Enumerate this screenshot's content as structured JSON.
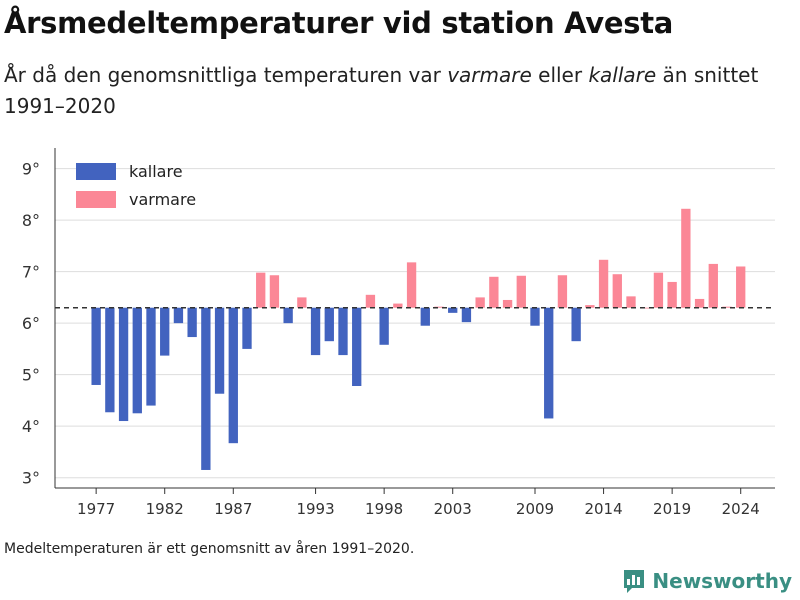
{
  "title": "Årsmedeltemperaturer vid station Avesta",
  "subtitle": {
    "part1": "År då den genomsnittliga temperaturen var ",
    "warm_word": "varmare",
    "part2": " eller ",
    "cold_word": "kallare",
    "part3": " än snittet 1991–2020"
  },
  "footnote": "Medeltemperaturen är ett genomsnitt av åren 1991–2020.",
  "brand": {
    "name": "Newsworthy",
    "icon": "newsworthy-logo-icon",
    "color": "#3a8f83"
  },
  "colors": {
    "kallare": "#4263bf",
    "varmare": "#fb8796",
    "reference_line": "#333333",
    "grid": "#dddddd"
  },
  "chart_data": {
    "type": "bar",
    "baseline": 6.3,
    "ylim": [
      2.8,
      9.4
    ],
    "yticks": [
      3,
      4,
      5,
      6,
      7,
      8,
      9
    ],
    "ytick_labels": [
      "3°",
      "4°",
      "5°",
      "6°",
      "7°",
      "8°",
      "9°"
    ],
    "xticks": [
      1977,
      1982,
      1987,
      1993,
      1998,
      2003,
      2009,
      2014,
      2019,
      2024
    ],
    "xtick_labels": [
      "1977",
      "1982",
      "1987",
      "1993",
      "1998",
      "2003",
      "2009",
      "2014",
      "2019",
      "2024"
    ],
    "xlim": [
      1974,
      2026.5
    ],
    "legend": [
      {
        "key": "kallare",
        "label": "kallare"
      },
      {
        "key": "varmare",
        "label": "varmare"
      }
    ],
    "legend_position": "top-left",
    "grid": true,
    "x": [
      1977,
      1978,
      1979,
      1980,
      1981,
      1982,
      1983,
      1984,
      1985,
      1986,
      1987,
      1988,
      1989,
      1990,
      1991,
      1992,
      1993,
      1994,
      1995,
      1996,
      1997,
      1998,
      1999,
      2000,
      2001,
      2002,
      2003,
      2004,
      2005,
      2006,
      2007,
      2008,
      2009,
      2010,
      2011,
      2012,
      2013,
      2014,
      2015,
      2016,
      2017,
      2018,
      2019,
      2020,
      2021,
      2022,
      2023,
      2024
    ],
    "values": [
      4.8,
      4.27,
      4.1,
      4.25,
      4.4,
      5.37,
      6.0,
      5.73,
      3.15,
      4.63,
      3.67,
      5.5,
      6.98,
      6.93,
      6.0,
      6.5,
      5.38,
      5.65,
      5.38,
      4.78,
      6.55,
      5.58,
      6.38,
      7.18,
      5.95,
      6.32,
      6.2,
      6.02,
      6.5,
      6.9,
      6.45,
      6.92,
      5.95,
      4.15,
      6.93,
      5.65,
      6.35,
      7.23,
      6.95,
      6.52,
      6.3,
      6.98,
      6.8,
      8.22,
      6.47,
      7.15,
      6.32,
      7.1
    ]
  }
}
